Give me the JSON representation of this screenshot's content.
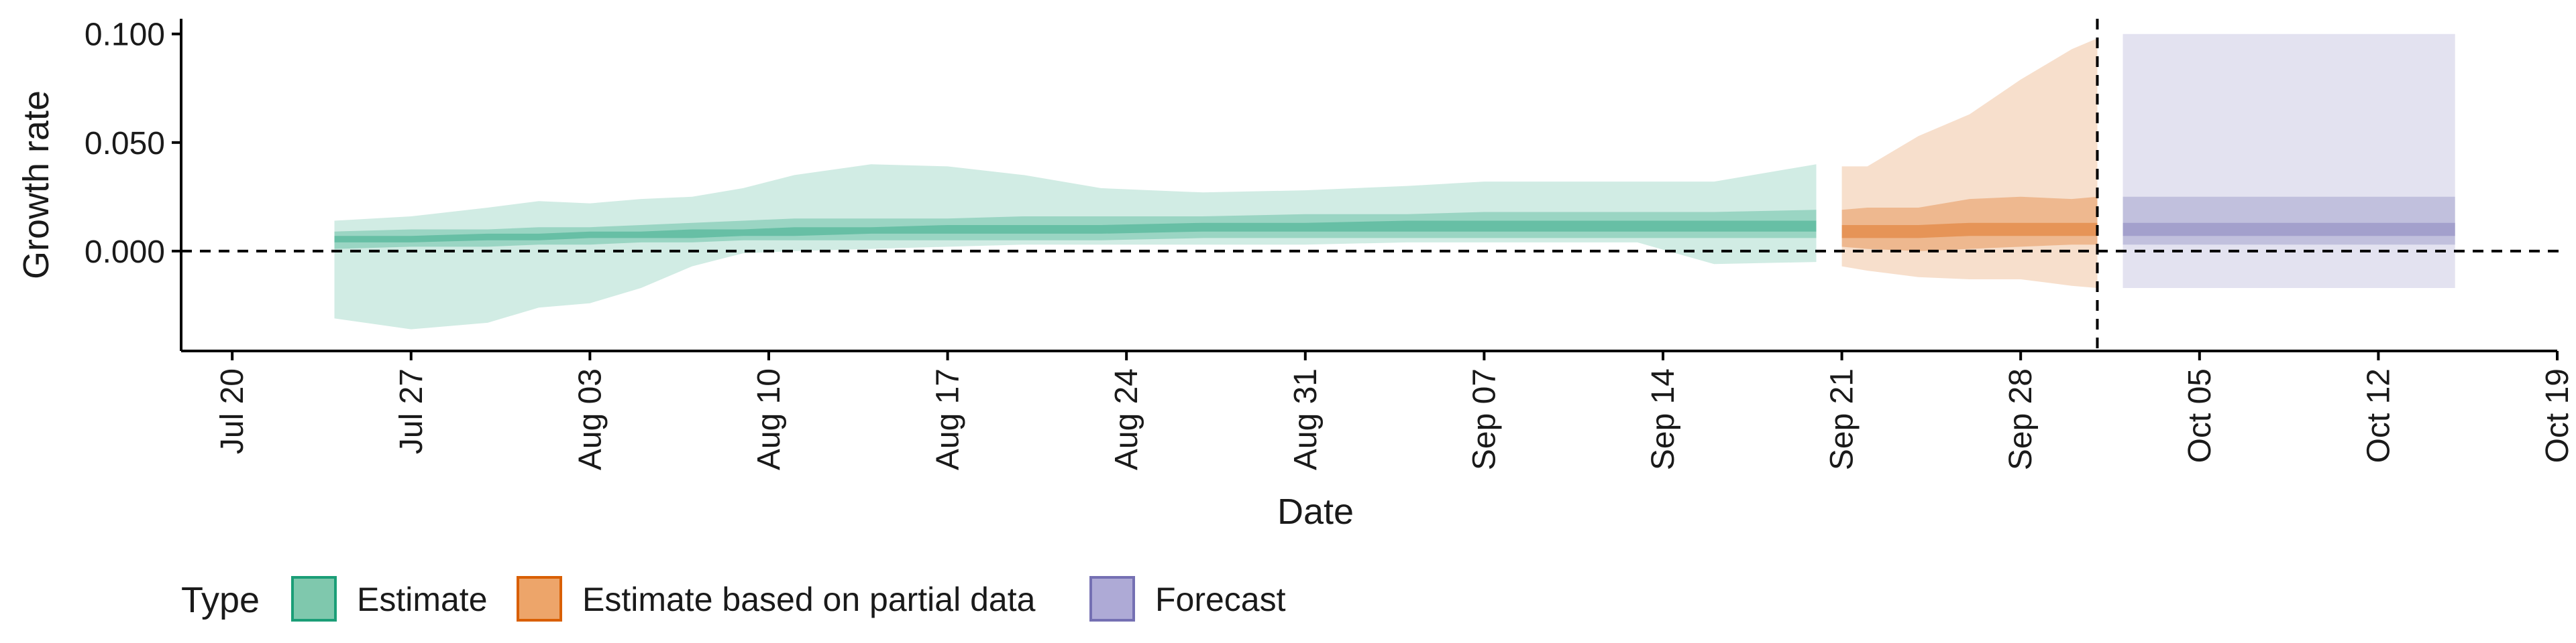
{
  "chart_data": {
    "type": "area",
    "xlabel": "Date",
    "ylabel": "Growth rate",
    "ylim": [
      -0.046,
      0.107
    ],
    "yticks": [
      0.0,
      0.05,
      0.1
    ],
    "ytick_labels": [
      "0.000",
      "0.050",
      "0.100"
    ],
    "xlim": [
      "2020-07-18",
      "2020-10-19"
    ],
    "xticks": [
      "2020-07-20",
      "2020-07-27",
      "2020-08-03",
      "2020-08-10",
      "2020-08-17",
      "2020-08-24",
      "2020-08-31",
      "2020-09-07",
      "2020-09-14",
      "2020-09-21",
      "2020-09-28",
      "2020-10-05",
      "2020-10-12",
      "2020-10-19"
    ],
    "xtick_labels": [
      "Jul 20",
      "Jul 27",
      "Aug 03",
      "Aug 10",
      "Aug 17",
      "Aug 24",
      "Aug 31",
      "Sep 07",
      "Sep 14",
      "Sep 21",
      "Sep 28",
      "Oct 05",
      "Oct 12",
      "Oct 19"
    ],
    "reference_lines": {
      "horizontal_y": 0.0,
      "vertical_date": "2020-10-01"
    },
    "legend": {
      "title": "Type",
      "position": "bottom",
      "entries": [
        {
          "label": "Estimate",
          "fill": "#7fc8ad",
          "stroke": "#1b9e77"
        },
        {
          "label": "Estimate based on partial data",
          "fill": "#eda56a",
          "stroke": "#d95f02"
        },
        {
          "label": "Forecast",
          "fill": "#aeaad6",
          "stroke": "#7570b3"
        }
      ]
    },
    "series": [
      {
        "type_index": 0,
        "color": "#1b9e77",
        "opacity": [
          0.2,
          0.3,
          0.4
        ],
        "x": [
          "2020-07-24",
          "2020-07-27",
          "2020-07-30",
          "2020-08-01",
          "2020-08-03",
          "2020-08-05",
          "2020-08-07",
          "2020-08-09",
          "2020-08-11",
          "2020-08-14",
          "2020-08-17",
          "2020-08-20",
          "2020-08-23",
          "2020-08-27",
          "2020-08-31",
          "2020-09-04",
          "2020-09-07",
          "2020-09-10",
          "2020-09-13",
          "2020-09-16",
          "2020-09-20"
        ],
        "bands": [
          {
            "lower": [
              -0.031,
              -0.036,
              -0.033,
              -0.026,
              -0.024,
              -0.017,
              -0.007,
              -0.001,
              0.0,
              0.001,
              0.002,
              0.003,
              0.003,
              0.003,
              0.003,
              0.004,
              0.004,
              0.004,
              0.004,
              -0.006,
              -0.005
            ],
            "upper": [
              0.014,
              0.016,
              0.02,
              0.023,
              0.022,
              0.024,
              0.025,
              0.029,
              0.035,
              0.04,
              0.039,
              0.035,
              0.029,
              0.027,
              0.028,
              0.03,
              0.032,
              0.032,
              0.032,
              0.032,
              0.04
            ]
          },
          {
            "lower": [
              0.001,
              0.002,
              0.002,
              0.003,
              0.003,
              0.004,
              0.004,
              0.005,
              0.005,
              0.005,
              0.005,
              0.005,
              0.005,
              0.006,
              0.006,
              0.006,
              0.006,
              0.006,
              0.006,
              0.006,
              0.006
            ],
            "upper": [
              0.009,
              0.01,
              0.01,
              0.011,
              0.011,
              0.012,
              0.013,
              0.014,
              0.015,
              0.015,
              0.015,
              0.016,
              0.016,
              0.016,
              0.017,
              0.017,
              0.018,
              0.018,
              0.018,
              0.018,
              0.019
            ]
          },
          {
            "lower": [
              0.004,
              0.004,
              0.005,
              0.005,
              0.006,
              0.006,
              0.006,
              0.007,
              0.007,
              0.008,
              0.008,
              0.008,
              0.008,
              0.009,
              0.009,
              0.009,
              0.009,
              0.009,
              0.009,
              0.009,
              0.009
            ],
            "upper": [
              0.007,
              0.007,
              0.008,
              0.008,
              0.009,
              0.009,
              0.01,
              0.01,
              0.011,
              0.011,
              0.012,
              0.012,
              0.012,
              0.013,
              0.013,
              0.014,
              0.014,
              0.014,
              0.014,
              0.014,
              0.014
            ]
          }
        ]
      },
      {
        "type_index": 1,
        "color": "#d95f02",
        "opacity": [
          0.2,
          0.3,
          0.4
        ],
        "x": [
          "2020-09-21",
          "2020-09-22",
          "2020-09-24",
          "2020-09-26",
          "2020-09-28",
          "2020-09-30",
          "2020-10-01"
        ],
        "bands": [
          {
            "lower": [
              -0.007,
              -0.009,
              -0.012,
              -0.013,
              -0.013,
              -0.016,
              -0.017
            ],
            "upper": [
              0.039,
              0.039,
              0.053,
              0.063,
              0.079,
              0.093,
              0.098
            ]
          },
          {
            "lower": [
              0.002,
              0.001,
              0.0,
              0.001,
              0.002,
              0.003,
              0.003
            ],
            "upper": [
              0.019,
              0.02,
              0.02,
              0.024,
              0.025,
              0.024,
              0.025
            ]
          },
          {
            "lower": [
              0.006,
              0.006,
              0.006,
              0.007,
              0.007,
              0.007,
              0.007
            ],
            "upper": [
              0.012,
              0.012,
              0.012,
              0.013,
              0.013,
              0.013,
              0.013
            ]
          }
        ]
      },
      {
        "type_index": 2,
        "color": "#7570b3",
        "opacity": [
          0.2,
          0.3,
          0.4
        ],
        "x": [
          "2020-10-02",
          "2020-10-15"
        ],
        "bands": [
          {
            "lower": [
              -0.017,
              -0.017
            ],
            "upper": [
              0.1,
              0.1
            ]
          },
          {
            "lower": [
              0.003,
              0.003
            ],
            "upper": [
              0.025,
              0.025
            ]
          },
          {
            "lower": [
              0.007,
              0.007
            ],
            "upper": [
              0.013,
              0.013
            ]
          }
        ]
      }
    ]
  }
}
